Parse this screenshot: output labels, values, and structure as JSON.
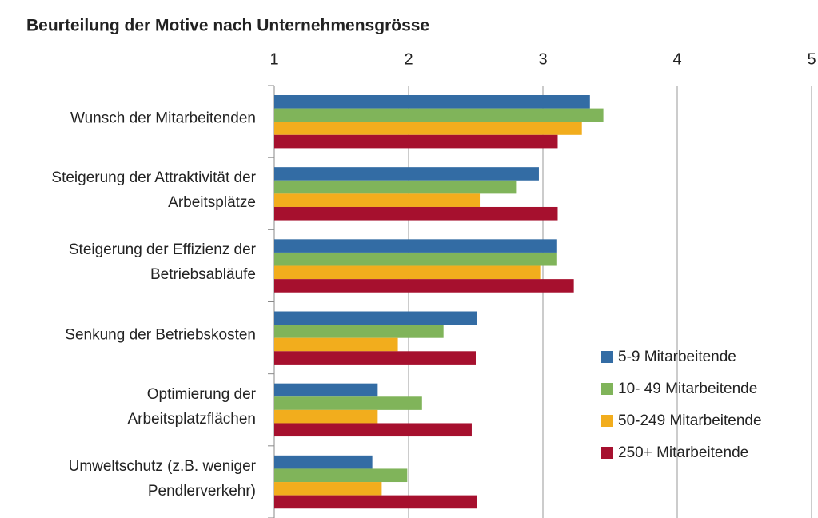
{
  "chart_data": {
    "type": "hbar",
    "title": "Beurteilung der Motive nach Unternehmensgrösse",
    "categories": [
      "Wunsch der Mitarbeitenden",
      "Steigerung der Attraktivität der Arbeitsplätze",
      "Steigerung der Effizienz der Betriebsabläufe",
      "Senkung der Betriebskosten",
      "Optimierung der Arbeitsplatzflächen",
      "Umweltschutz (z.B. weniger Pendlerverkehr)"
    ],
    "series": [
      {
        "name": "5-9 Mitarbeitende",
        "color": "#336ca4",
        "values": [
          3.35,
          2.97,
          3.1,
          2.51,
          1.77,
          1.73
        ]
      },
      {
        "name": "10- 49 Mitarbeitende",
        "color": "#80b45a",
        "values": [
          3.45,
          2.8,
          3.1,
          2.26,
          2.1,
          1.99
        ]
      },
      {
        "name": "50-249 Mitarbeitende",
        "color": "#f2ad1d",
        "values": [
          3.29,
          2.53,
          2.98,
          1.92,
          1.77,
          1.8
        ]
      },
      {
        "name": "250+ Mitarbeitende",
        "color": "#a6102e",
        "values": [
          3.11,
          3.11,
          3.23,
          2.5,
          2.47,
          2.51
        ]
      }
    ],
    "xlim": [
      1,
      5
    ],
    "xticks": [
      1,
      2,
      3,
      4,
      5
    ],
    "grid": true,
    "legend": "lower right"
  }
}
